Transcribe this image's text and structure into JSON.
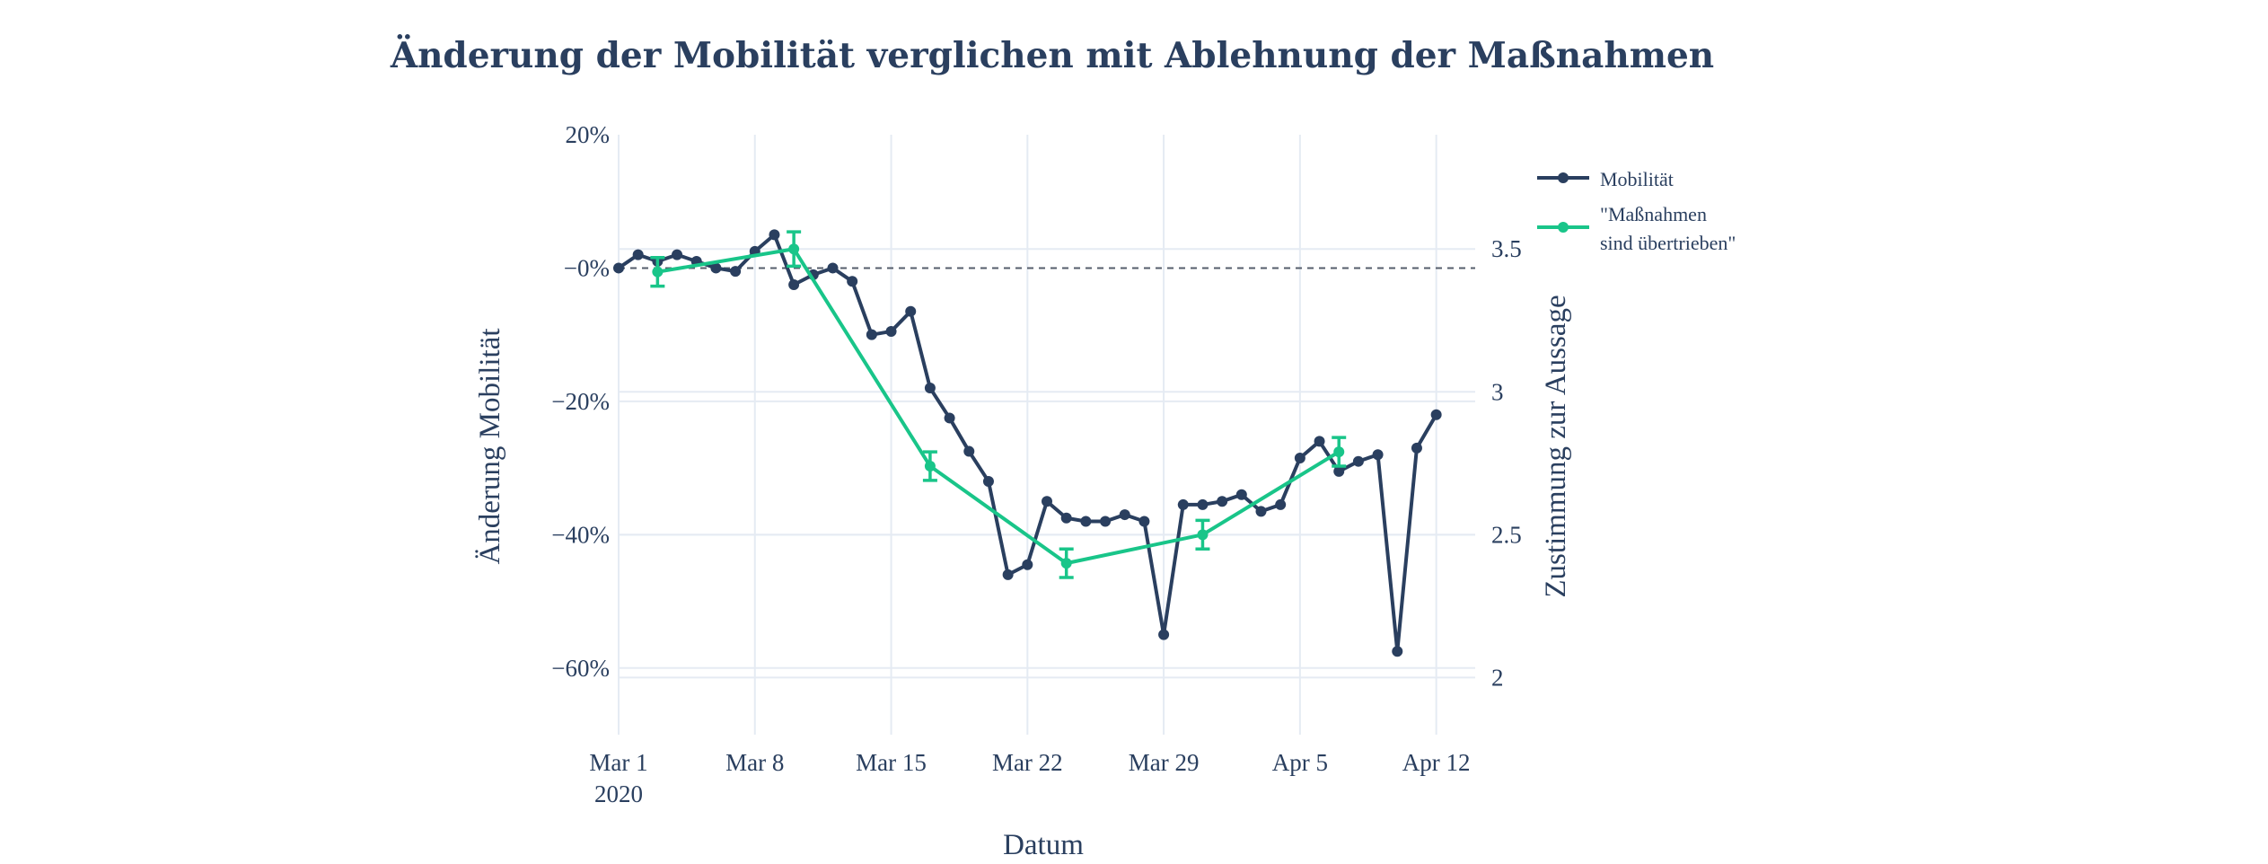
{
  "chart_data": {
    "type": "line",
    "title": "Änderung der Mobilität verglichen mit Ablehnung der Maßnahmen",
    "xlabel": "Datum",
    "ylabel": "Änderung Mobilität",
    "y2label": "Zustimmung zur Aussage",
    "x_ticks": [
      {
        "date": "2020-03-01",
        "label": "Mar 1",
        "sublabel": "2020"
      },
      {
        "date": "2020-03-08",
        "label": "Mar 8"
      },
      {
        "date": "2020-03-15",
        "label": "Mar 15"
      },
      {
        "date": "2020-03-22",
        "label": "Mar 22"
      },
      {
        "date": "2020-03-29",
        "label": "Mar 29"
      },
      {
        "date": "2020-04-05",
        "label": "Apr 5"
      },
      {
        "date": "2020-04-12",
        "label": "Apr 12"
      }
    ],
    "xlim": [
      "2020-03-01",
      "2020-04-14"
    ],
    "ylim": [
      -70,
      20
    ],
    "y_ticks": [
      20,
      0,
      -20,
      -40,
      -60
    ],
    "y_tick_labels": [
      "20%",
      "−0%",
      "−20%",
      "−40%",
      "−60%"
    ],
    "y2lim": [
      1.8,
      3.9
    ],
    "y2_ticks": [
      3.5,
      3,
      2.5,
      2
    ],
    "y2_tick_labels": [
      "3.5",
      "3",
      "2.5",
      "2"
    ],
    "reference_line": {
      "axis": "y",
      "value": 0,
      "style": "dashed"
    },
    "grid": true,
    "legend_position": "top-right outside",
    "series": [
      {
        "name": "Mobilität",
        "axis": "y",
        "color": "#2a3f5f",
        "points": [
          {
            "x": "2020-03-01",
            "y": 0
          },
          {
            "x": "2020-03-02",
            "y": 2
          },
          {
            "x": "2020-03-03",
            "y": 1
          },
          {
            "x": "2020-03-04",
            "y": 2
          },
          {
            "x": "2020-03-05",
            "y": 1
          },
          {
            "x": "2020-03-06",
            "y": 0
          },
          {
            "x": "2020-03-07",
            "y": -0.5
          },
          {
            "x": "2020-03-08",
            "y": 2.5
          },
          {
            "x": "2020-03-09",
            "y": 5
          },
          {
            "x": "2020-03-10",
            "y": -2.5
          },
          {
            "x": "2020-03-11",
            "y": -1
          },
          {
            "x": "2020-03-12",
            "y": 0
          },
          {
            "x": "2020-03-13",
            "y": -2
          },
          {
            "x": "2020-03-14",
            "y": -10
          },
          {
            "x": "2020-03-15",
            "y": -9.5
          },
          {
            "x": "2020-03-16",
            "y": -6.5
          },
          {
            "x": "2020-03-17",
            "y": -18
          },
          {
            "x": "2020-03-18",
            "y": -22.5
          },
          {
            "x": "2020-03-19",
            "y": -27.5
          },
          {
            "x": "2020-03-20",
            "y": -32
          },
          {
            "x": "2020-03-21",
            "y": -46
          },
          {
            "x": "2020-03-22",
            "y": -44.5
          },
          {
            "x": "2020-03-23",
            "y": -35
          },
          {
            "x": "2020-03-24",
            "y": -37.5
          },
          {
            "x": "2020-03-25",
            "y": -38
          },
          {
            "x": "2020-03-26",
            "y": -38
          },
          {
            "x": "2020-03-27",
            "y": -37
          },
          {
            "x": "2020-03-28",
            "y": -38
          },
          {
            "x": "2020-03-29",
            "y": -55
          },
          {
            "x": "2020-03-30",
            "y": -35.5
          },
          {
            "x": "2020-03-31",
            "y": -35.5
          },
          {
            "x": "2020-04-01",
            "y": -35
          },
          {
            "x": "2020-04-02",
            "y": -34
          },
          {
            "x": "2020-04-03",
            "y": -36.5
          },
          {
            "x": "2020-04-04",
            "y": -35.5
          },
          {
            "x": "2020-04-05",
            "y": -28.5
          },
          {
            "x": "2020-04-06",
            "y": -26
          },
          {
            "x": "2020-04-07",
            "y": -30.5
          },
          {
            "x": "2020-04-08",
            "y": -29
          },
          {
            "x": "2020-04-09",
            "y": -28
          },
          {
            "x": "2020-04-10",
            "y": -57.5
          },
          {
            "x": "2020-04-11",
            "y": -27
          },
          {
            "x": "2020-04-12",
            "y": -22
          }
        ]
      },
      {
        "name": "\"Maßnahmen sind übertrieben\"",
        "legend_lines": [
          "\"Maßnahmen",
          "sind übertrieben\""
        ],
        "axis": "y2",
        "color": "#19c589",
        "points": [
          {
            "x": "2020-03-03",
            "y": 3.42,
            "err": 0.05
          },
          {
            "x": "2020-03-10",
            "y": 3.5,
            "err": 0.06
          },
          {
            "x": "2020-03-17",
            "y": 2.74,
            "err": 0.05
          },
          {
            "x": "2020-03-24",
            "y": 2.4,
            "err": 0.05
          },
          {
            "x": "2020-03-31",
            "y": 2.5,
            "err": 0.05
          },
          {
            "x": "2020-04-07",
            "y": 2.79,
            "err": 0.05
          }
        ]
      }
    ]
  }
}
